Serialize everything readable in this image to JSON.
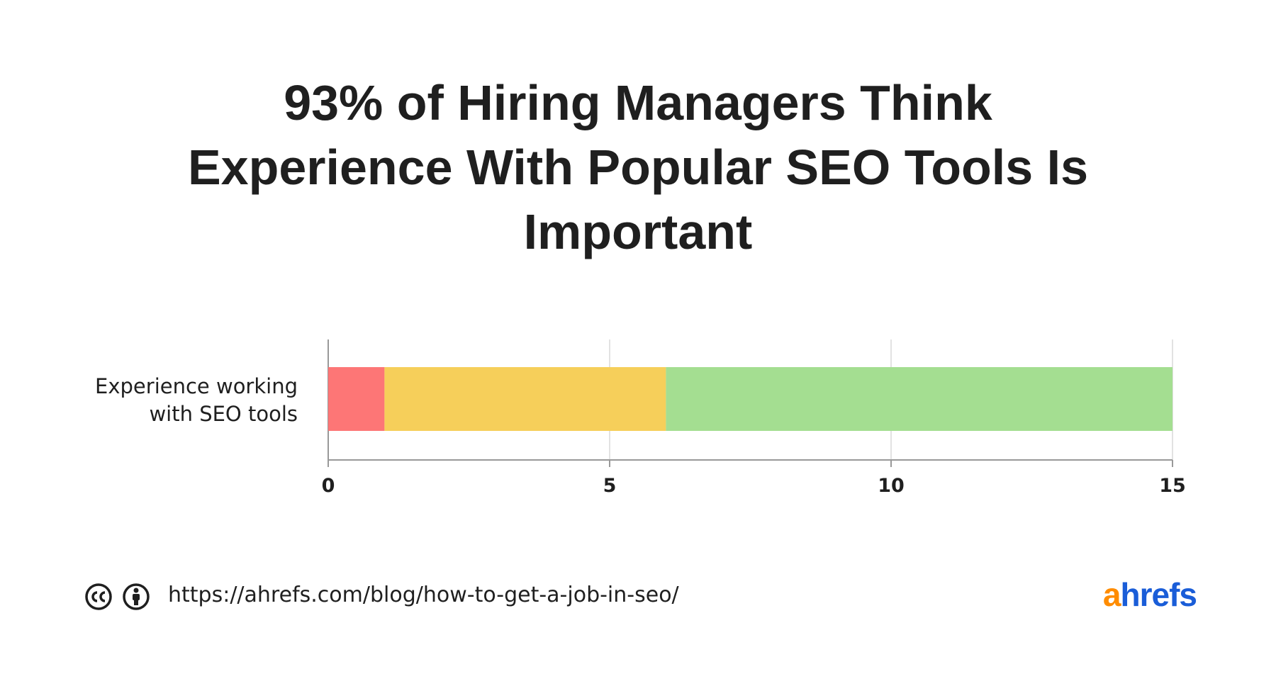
{
  "chart_data": {
    "type": "bar",
    "orientation": "horizontal",
    "stacked": true,
    "title": "93% of Hiring Managers Think Experience With Popular SEO Tools Is Important",
    "categories": [
      "Experience working with SEO tools"
    ],
    "series": [
      {
        "color": "#fd7676",
        "values": [
          1
        ]
      },
      {
        "color": "#f6cf5a",
        "values": [
          5
        ]
      },
      {
        "color": "#a4de91",
        "values": [
          9
        ]
      }
    ],
    "xlim": [
      0,
      15
    ],
    "xticks": [
      0,
      5,
      10,
      15
    ],
    "grid": true
  },
  "footer": {
    "url": "https://ahrefs.com/blog/how-to-get-a-job-in-seo/",
    "logo": "ahrefs"
  }
}
